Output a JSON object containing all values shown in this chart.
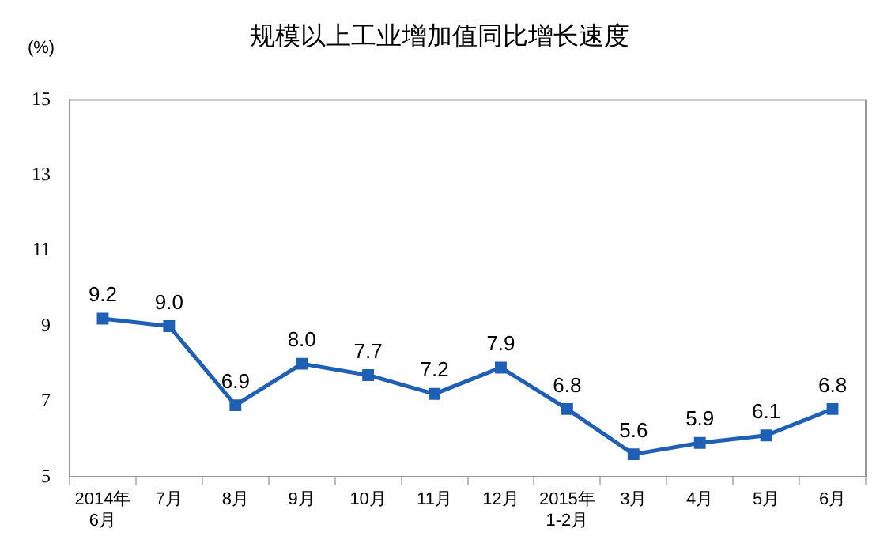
{
  "chart_data": {
    "type": "line",
    "title": "规模以上工业增加值同比增长速度",
    "ylabel": "(%)",
    "categories": [
      "2014年\n6月",
      "7月",
      "8月",
      "9月",
      "10月",
      "11月",
      "12月",
      "2015年\n1-2月",
      "3月",
      "4月",
      "5月",
      "6月"
    ],
    "series": [
      {
        "color": "#1f5fb4",
        "values": [
          9.2,
          9.0,
          6.9,
          8.0,
          7.7,
          7.2,
          7.9,
          6.8,
          5.6,
          5.9,
          6.1,
          6.8
        ],
        "value_labels": [
          "9.2",
          "9.0",
          "6.9",
          "8.0",
          "7.7",
          "7.2",
          "7.9",
          "6.8",
          "5.6",
          "5.9",
          "6.1",
          "6.8"
        ]
      }
    ],
    "ylim": [
      5,
      15
    ],
    "yticks": [
      5,
      7,
      9,
      11,
      13,
      15
    ],
    "grid": false,
    "legend": false,
    "marker": "square",
    "line_style": "solid"
  }
}
